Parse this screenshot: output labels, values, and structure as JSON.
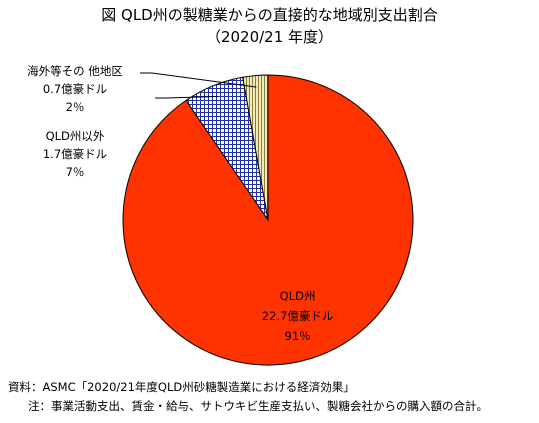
{
  "chart_data": {
    "type": "pie",
    "title": "図 QLD州の製糖業からの直接的な地域別支出割合",
    "subtitle": "（2020/21 年度）",
    "unit": "億豪ドル",
    "slices": [
      {
        "name": "QLD州",
        "value": 22.7,
        "value_label": "22.7億豪ドル",
        "percent_label": "91％",
        "color": "#ff3300",
        "pattern": "solid"
      },
      {
        "name": "QLD州以外",
        "value": 1.7,
        "value_label": "1.7億豪ドル",
        "percent_label": "7％",
        "color": "#2233aa",
        "pattern": "crosshatch"
      },
      {
        "name": "海外等その 他地区",
        "value": 0.7,
        "value_label": "0.7億豪ドル",
        "percent_label": "2％",
        "color": "#e8d890",
        "pattern": "stripes"
      }
    ],
    "legend": "none",
    "labels": "inside-and-callout"
  },
  "notes": {
    "source": "資料：ASMC「2020/21年度QLD州砂糖製造業における経済効果」",
    "remark": "注：事業活動支出、賃金・給与、サトウキビ生産支払い、製糖会社からの購入額の合計。"
  }
}
